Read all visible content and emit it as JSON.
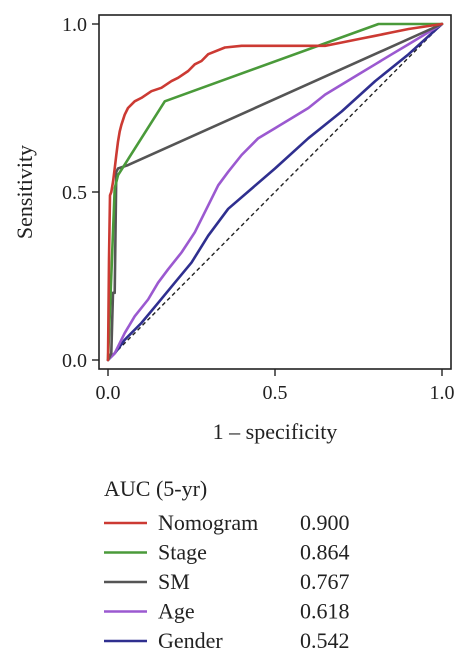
{
  "chart_data": {
    "type": "line",
    "xlabel": "1 – specificity",
    "ylabel": "Sensitivity",
    "xlim": [
      0,
      1
    ],
    "ylim": [
      0,
      1
    ],
    "xticks": [
      "0.0",
      "0.5",
      "1.0"
    ],
    "yticks": [
      "0.0",
      "0.5",
      "1.0"
    ],
    "grid": false,
    "reference_line": {
      "style": "dashed",
      "color": "#222222",
      "x": [
        0,
        1
      ],
      "y": [
        0,
        1
      ]
    },
    "legend": {
      "title": "AUC (5-yr)",
      "placement": "bottom"
    },
    "series": [
      {
        "name": "Nomogram",
        "auc": "0.900",
        "color": "#cc3a33",
        "x": [
          0,
          0.003,
          0.006,
          0.01,
          0.015,
          0.02,
          0.025,
          0.03,
          0.035,
          0.04,
          0.05,
          0.06,
          0.08,
          0.1,
          0.13,
          0.16,
          0.19,
          0.21,
          0.24,
          0.26,
          0.28,
          0.3,
          0.35,
          0.4,
          0.45,
          0.5,
          0.55,
          0.6,
          0.65,
          0.7,
          0.75,
          0.8,
          0.85,
          0.9,
          1.0
        ],
        "y": [
          0,
          0.3,
          0.49,
          0.5,
          0.53,
          0.57,
          0.61,
          0.65,
          0.68,
          0.7,
          0.73,
          0.75,
          0.77,
          0.78,
          0.8,
          0.81,
          0.83,
          0.84,
          0.86,
          0.88,
          0.89,
          0.91,
          0.93,
          0.935,
          0.935,
          0.935,
          0.935,
          0.935,
          0.935,
          0.945,
          0.955,
          0.965,
          0.975,
          0.985,
          1.0
        ]
      },
      {
        "name": "Stage",
        "auc": "0.864",
        "color": "#4a9a3a",
        "x": [
          0,
          0.02,
          0.03,
          0.17,
          0.81,
          1.0
        ],
        "y": [
          0,
          0.51,
          0.55,
          0.77,
          1.0,
          1.0
        ]
      },
      {
        "name": "SM",
        "auc": "0.767",
        "color": "#555555",
        "x": [
          0,
          0.01,
          0.015,
          0.02,
          0.025,
          0.03,
          0.06,
          1.0
        ],
        "y": [
          0,
          0.02,
          0.2,
          0.2,
          0.56,
          0.57,
          0.58,
          1.0
        ]
      },
      {
        "name": "Age",
        "auc": "0.618",
        "color": "#9b59d0",
        "x": [
          0,
          0.02,
          0.05,
          0.08,
          0.12,
          0.15,
          0.18,
          0.22,
          0.26,
          0.3,
          0.33,
          0.36,
          0.4,
          0.45,
          0.5,
          0.55,
          0.6,
          0.65,
          0.7,
          0.75,
          0.8,
          0.85,
          0.9,
          0.95,
          1.0
        ],
        "y": [
          0,
          0.02,
          0.08,
          0.13,
          0.18,
          0.23,
          0.27,
          0.32,
          0.38,
          0.46,
          0.52,
          0.56,
          0.61,
          0.66,
          0.69,
          0.72,
          0.75,
          0.79,
          0.82,
          0.85,
          0.88,
          0.91,
          0.94,
          0.97,
          1.0
        ]
      },
      {
        "name": "Gender",
        "auc": "0.542",
        "color": "#2f2f8f",
        "x": [
          0,
          0.02,
          0.05,
          0.1,
          0.15,
          0.2,
          0.25,
          0.3,
          0.36,
          0.5,
          0.6,
          0.7,
          0.8,
          0.9,
          1.0
        ],
        "y": [
          0,
          0.02,
          0.06,
          0.11,
          0.17,
          0.23,
          0.29,
          0.37,
          0.45,
          0.57,
          0.66,
          0.74,
          0.83,
          0.91,
          1.0
        ]
      }
    ]
  }
}
